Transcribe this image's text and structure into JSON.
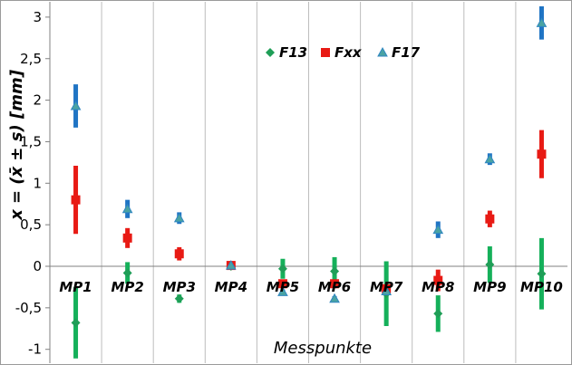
{
  "chart_data": {
    "type": "scatter",
    "title": "",
    "xlabel": "Messpunkte",
    "ylabel": "x = (x̄ ± s) [mm]",
    "ylim": [
      -1.1,
      3.2
    ],
    "y_ticks": [
      -1,
      -0.5,
      0,
      0.5,
      1,
      1.5,
      2,
      2.5,
      3
    ],
    "y_tick_labels": [
      "-1",
      "-0,5",
      "0",
      "0,5",
      "1",
      "1,5",
      "2",
      "2,5",
      "3"
    ],
    "categories": [
      "MP1",
      "MP2",
      "MP3",
      "MP4",
      "MP5",
      "MP6",
      "MP7",
      "MP8",
      "MP9",
      "MP10"
    ],
    "grid": "vertical",
    "legend_position": "top-center",
    "series": [
      {
        "name": "F13",
        "marker": "diamond",
        "color": "#1f9e57",
        "errcolor": "#15b05a",
        "mean": [
          -0.68,
          -0.08,
          -0.39,
          0.0,
          -0.03,
          -0.06,
          -0.33,
          -0.57,
          0.02,
          -0.09
        ],
        "sd": [
          0.43,
          0.13,
          0.05,
          0.01,
          0.12,
          0.17,
          0.39,
          0.22,
          0.22,
          0.43
        ]
      },
      {
        "name": "Fxx",
        "marker": "square",
        "color": "#e81a14",
        "errcolor": "#e81a14",
        "mean": [
          0.8,
          0.34,
          0.15,
          0.01,
          -0.21,
          -0.21,
          -0.27,
          -0.17,
          0.57,
          1.35
        ],
        "sd": [
          0.41,
          0.12,
          0.08,
          0.01,
          0.04,
          0.04,
          0.04,
          0.13,
          0.1,
          0.29
        ]
      },
      {
        "name": "F17",
        "marker": "triangle",
        "color": "#2e86c1",
        "errcolor": "#1f74c4",
        "mean": [
          1.93,
          0.69,
          0.58,
          0.01,
          -0.31,
          -0.39,
          -0.3,
          0.44,
          1.29,
          2.93
        ],
        "sd": [
          0.26,
          0.11,
          0.07,
          0.01,
          0.03,
          0.03,
          0.03,
          0.1,
          0.07,
          0.2
        ]
      }
    ]
  }
}
